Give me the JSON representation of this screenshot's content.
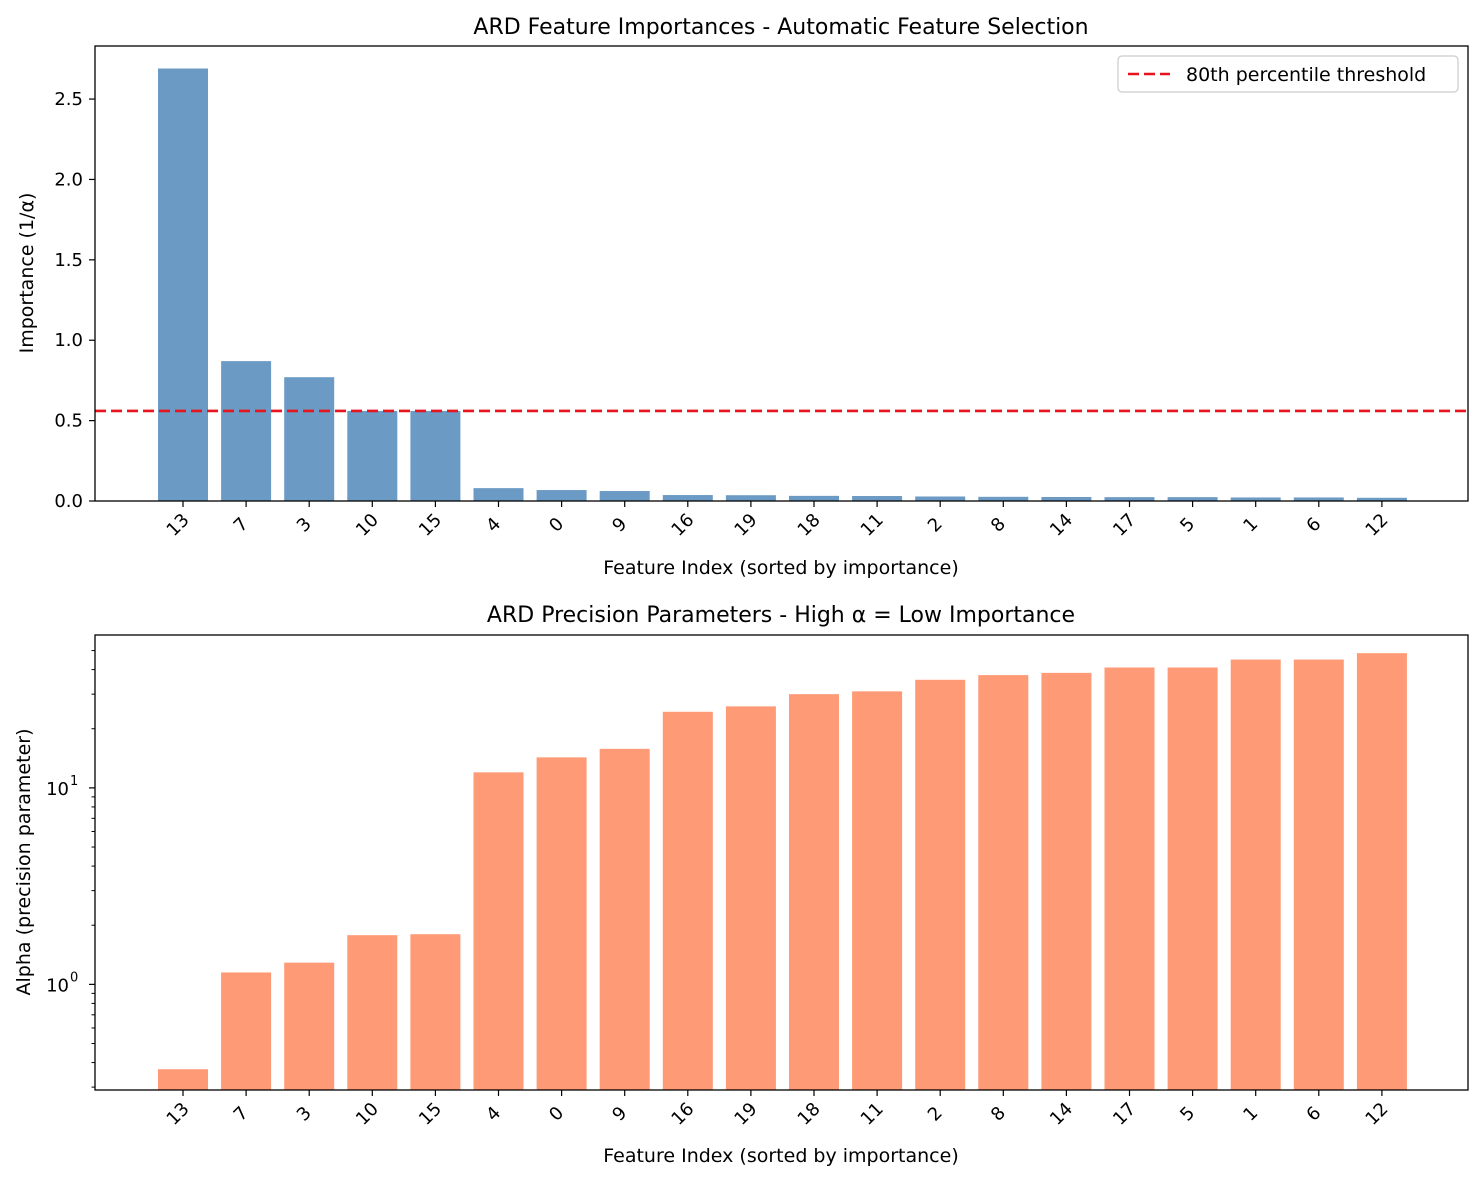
{
  "chart_data": [
    {
      "type": "bar",
      "title": "ARD Feature Importances - Automatic Feature Selection",
      "xlabel": "Feature Index (sorted by importance)",
      "ylabel": "Importance (1/α)",
      "categories": [
        "13",
        "7",
        "3",
        "10",
        "15",
        "4",
        "0",
        "9",
        "16",
        "19",
        "18",
        "11",
        "2",
        "8",
        "14",
        "17",
        "5",
        "1",
        "6",
        "12"
      ],
      "values": [
        2.69,
        0.87,
        0.77,
        0.56,
        0.56,
        0.08,
        0.068,
        0.062,
        0.037,
        0.036,
        0.032,
        0.031,
        0.028,
        0.026,
        0.025,
        0.024,
        0.024,
        0.022,
        0.022,
        0.02
      ],
      "ylim": [
        0,
        2.83
      ],
      "yticks": [
        "0.0",
        "0.5",
        "1.0",
        "1.5",
        "2.0",
        "2.5"
      ],
      "bar_color": "#6b9ac4",
      "threshold": {
        "value": 0.56,
        "label": "80th percentile threshold",
        "color": "#e8141c",
        "style": "dashed"
      },
      "legend": "top-right",
      "grid": false
    },
    {
      "type": "bar",
      "title": "ARD Precision Parameters - High α = Low Importance",
      "xlabel": "Feature Index (sorted by importance)",
      "ylabel": "Alpha (precision parameter)",
      "categories": [
        "13",
        "7",
        "3",
        "10",
        "15",
        "4",
        "0",
        "9",
        "16",
        "19",
        "18",
        "11",
        "2",
        "8",
        "14",
        "17",
        "5",
        "1",
        "6",
        "12"
      ],
      "values": [
        0.37,
        1.15,
        1.29,
        1.78,
        1.8,
        12.0,
        14.3,
        15.8,
        24.4,
        26.0,
        30.0,
        31.0,
        35.5,
        37.5,
        38.5,
        41.0,
        41.0,
        45.0,
        45.0,
        48.5
      ],
      "yscale": "log",
      "ylim": [
        0.29,
        60
      ],
      "yticks": [
        {
          "base": "10",
          "exp": "0",
          "value": 1
        },
        {
          "base": "10",
          "exp": "1",
          "value": 10
        }
      ],
      "bar_color": "#ff9a76",
      "grid": false
    }
  ]
}
